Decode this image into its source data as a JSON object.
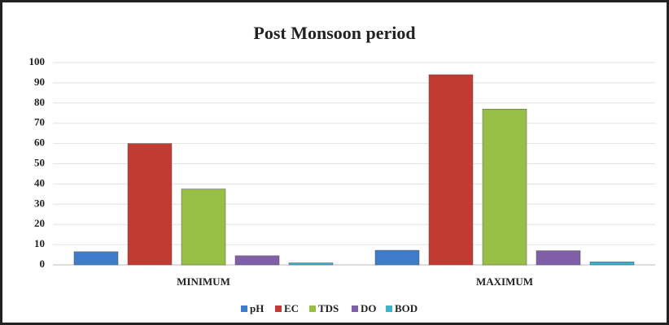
{
  "chart_data": {
    "type": "bar",
    "title": "Post Monsoon period",
    "categories": [
      "MINIMUM",
      "MAXIMUM"
    ],
    "series": [
      {
        "name": "pH",
        "color": "#3d7cc9",
        "values": [
          6.5,
          7.2
        ]
      },
      {
        "name": "EC",
        "color": "#c23b33",
        "values": [
          60,
          94
        ]
      },
      {
        "name": "TDS",
        "color": "#98bf45",
        "values": [
          37.5,
          77
        ]
      },
      {
        "name": "DO",
        "color": "#7f5fa8",
        "values": [
          4.5,
          7
        ]
      },
      {
        "name": "BOD",
        "color": "#3fb0d0",
        "values": [
          1,
          1.5
        ]
      }
    ],
    "ylim": [
      0,
      100
    ],
    "yticks": [
      0,
      10,
      20,
      30,
      40,
      50,
      60,
      70,
      80,
      90,
      100
    ],
    "grid": true,
    "legend": "bottom"
  }
}
